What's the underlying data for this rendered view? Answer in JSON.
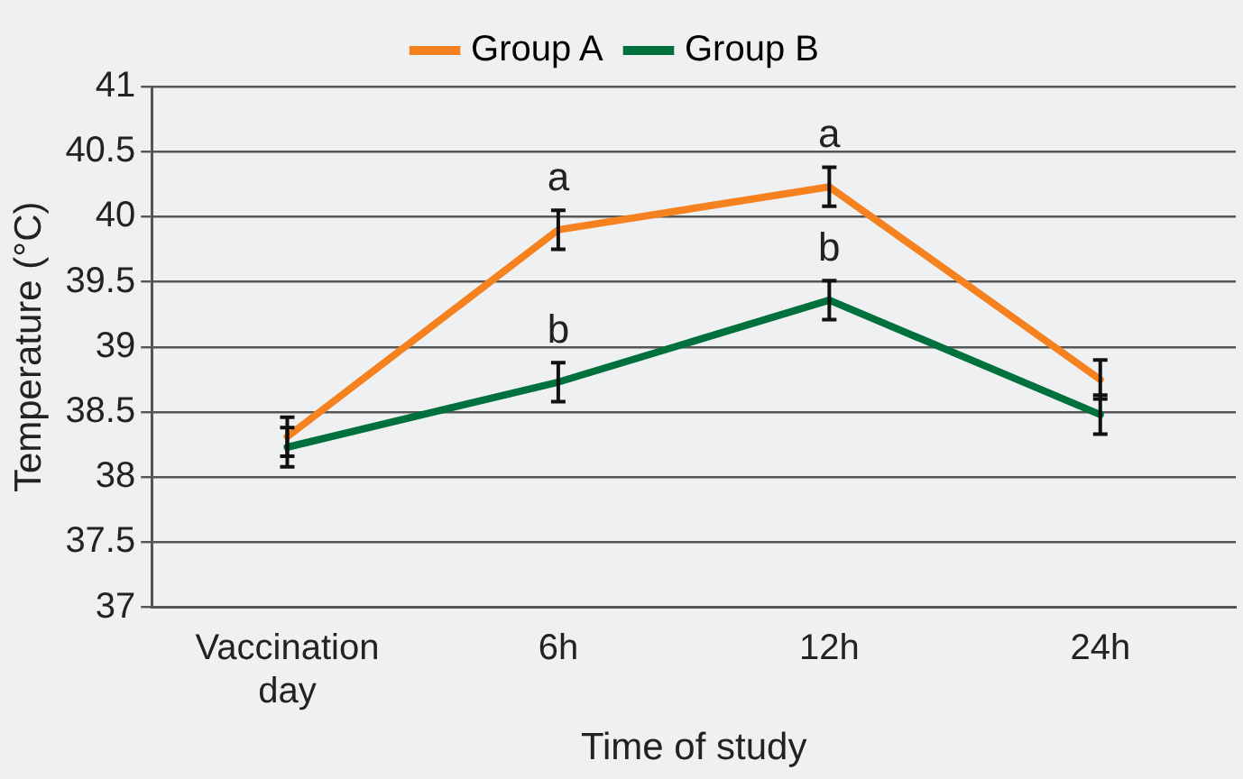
{
  "chart_data": {
    "type": "line",
    "xlabel": "Time of study",
    "ylabel": "Temperature (°C)",
    "categories": [
      "Vaccination day",
      "6h",
      "12h",
      "24h"
    ],
    "series": [
      {
        "name": "Group A",
        "color": "#f5821f",
        "values": [
          38.31,
          39.9,
          40.23,
          38.75
        ],
        "errors": [
          0.15,
          0.15,
          0.15,
          0.15
        ]
      },
      {
        "name": "Group B",
        "color": "#00703c",
        "values": [
          38.23,
          38.73,
          39.36,
          38.48
        ],
        "errors": [
          0.15,
          0.15,
          0.15,
          0.15
        ]
      }
    ],
    "ylim": [
      37,
      41
    ],
    "yticks": [
      37,
      37.5,
      38,
      38.5,
      39,
      39.5,
      40,
      40.5,
      41
    ],
    "grid": "y",
    "legend": "top",
    "marker": "none",
    "line_style": "solid",
    "annotations": [
      {
        "text": "a",
        "x": "6h",
        "y": 39.9
      },
      {
        "text": "a",
        "x": "12h",
        "y": 40.23
      },
      {
        "text": "b",
        "x": "6h",
        "y": 38.73
      },
      {
        "text": "b",
        "x": "12h",
        "y": 39.36
      }
    ]
  }
}
